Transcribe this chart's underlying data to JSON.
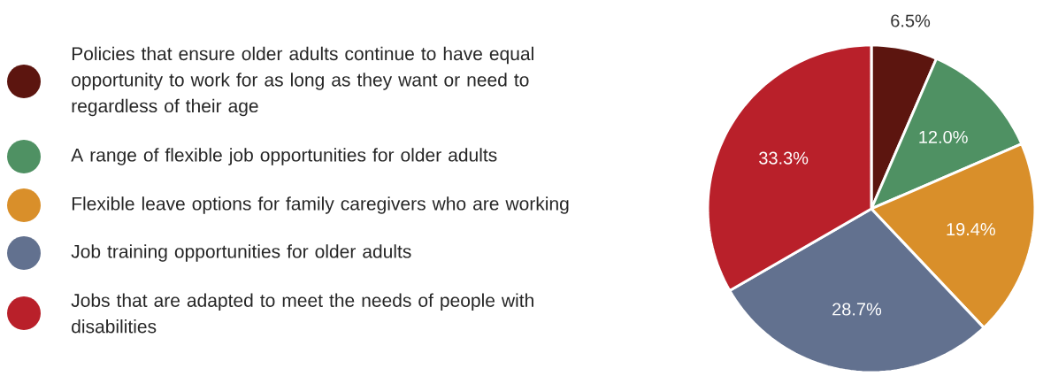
{
  "chart_data": {
    "type": "pie",
    "categories": [
      "Policies that ensure older adults continue to have equal opportunity to work for as long as they want or need to regardless of their age",
      "A range of flexible job opportunities for older adults",
      "Flexible leave options for family caregivers who are working",
      "Job training opportunities for older adults",
      "Jobs that are adapted to meet the needs of people with disabilities"
    ],
    "values": [
      6.5,
      12.0,
      19.4,
      28.7,
      33.3
    ],
    "value_labels": [
      "6.5%",
      "12.0%",
      "19.4%",
      "28.7%",
      "33.3%"
    ],
    "colors": [
      "#5c150f",
      "#4f9163",
      "#d98f2a",
      "#62718f",
      "#b9202a"
    ],
    "legend": "left"
  }
}
